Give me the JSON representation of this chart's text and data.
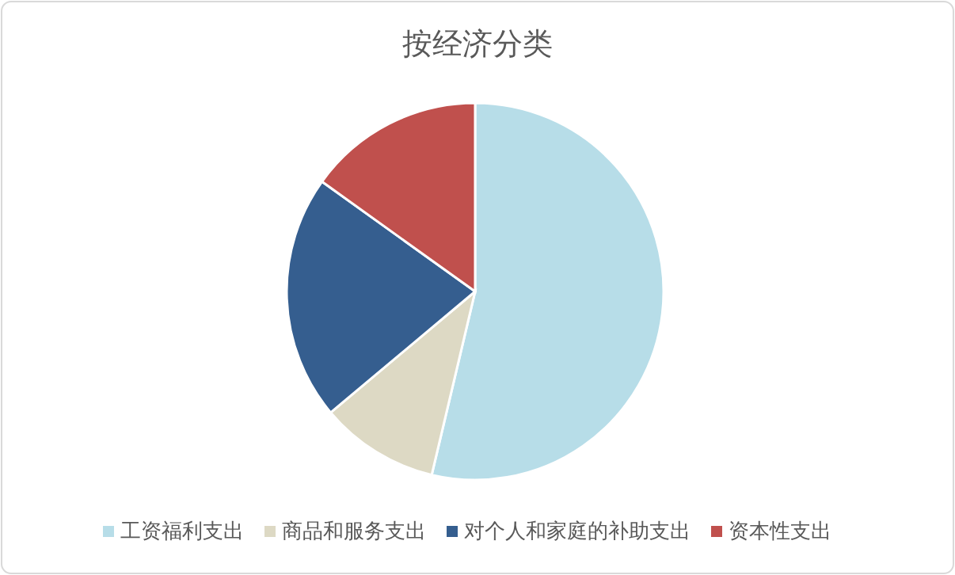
{
  "chart_data": {
    "type": "pie",
    "title": "按经济分类",
    "categories": [
      "工资福利支出",
      "商品和服务支出",
      "对个人和家庭的补助支出",
      "资本性支出"
    ],
    "values": [
      53.7,
      10.2,
      21,
      15.1
    ],
    "colors": [
      "#b7dde8",
      "#ddd9c4",
      "#355e8f",
      "#c0504d"
    ],
    "legend": "bottom"
  }
}
